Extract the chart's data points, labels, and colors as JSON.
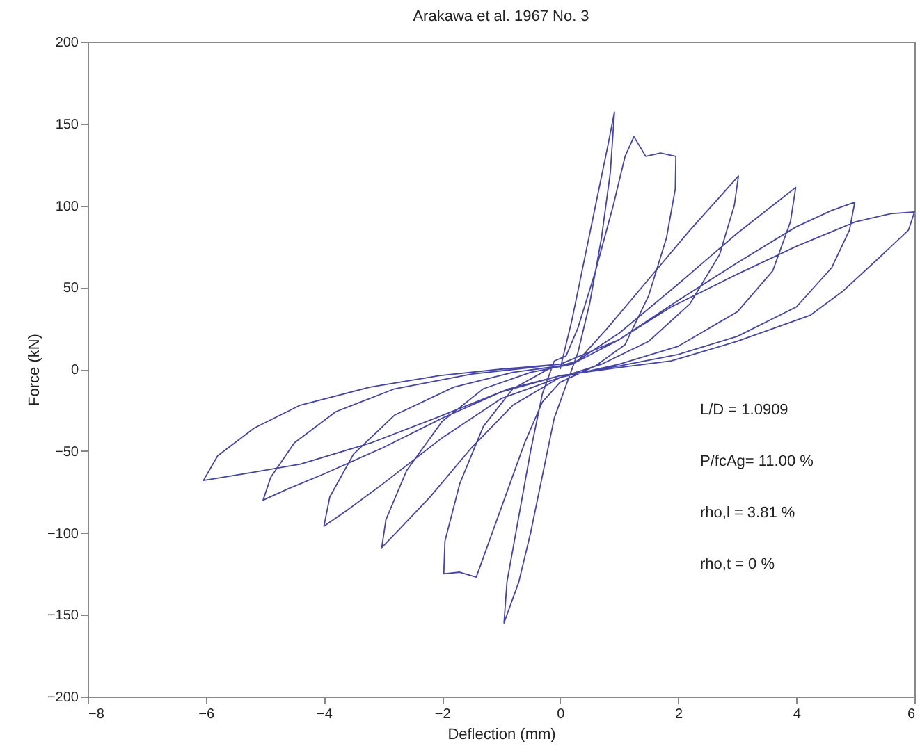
{
  "chart_data": {
    "type": "line",
    "title": "Arakawa et al. 1967 No. 3",
    "xlabel": "Deflection (mm)",
    "ylabel": "Force (kN)",
    "annotations": [
      "L/D  =  1.0909",
      "P/fcAg=  11.00  %",
      "rho,l  =  3.81  %",
      "rho,t  =  0  %"
    ],
    "xlim": [
      -8,
      6
    ],
    "xticks": [
      -8,
      -6,
      -4,
      -2,
      0,
      2,
      4,
      6
    ],
    "ylim": [
      -200,
      200
    ],
    "yticks": [
      -200,
      -150,
      -100,
      -50,
      0,
      50,
      100,
      150,
      200
    ],
    "grid": false,
    "series": [
      {
        "color": "#4444aa",
        "x": [
          0,
          0.2,
          0.4,
          0.6,
          0.8,
          0.92,
          0.85,
          0.7,
          0.5,
          0.3,
          0.1,
          -0.1,
          -0.3,
          -0.5,
          -0.7,
          -0.95,
          -0.9,
          -0.7,
          -0.5,
          -0.3,
          -0.1,
          0.1,
          0.3,
          0.6,
          0.9,
          1.1,
          1.25,
          1.45,
          1.7,
          1.96,
          1.95,
          1.8,
          1.5,
          1.1,
          0.6,
          0,
          -0.3,
          -0.6,
          -0.9,
          -1.2,
          -1.42,
          -1.7,
          -1.97,
          -1.95,
          -1.7,
          -1.3,
          -0.8,
          -0.2,
          0.3,
          0.8,
          1.5,
          2.2,
          2.7,
          3.02,
          2.95,
          2.7,
          2.2,
          1.5,
          0.7,
          0,
          -0.8,
          -1.5,
          -2.2,
          -2.7,
          -3.02,
          -2.95,
          -2.6,
          -2,
          -1.3,
          -0.5,
          0.2,
          1,
          2,
          3,
          3.6,
          3.99,
          3.9,
          3.6,
          3,
          2,
          1,
          0,
          -1,
          -2,
          -3,
          -3.6,
          -4,
          -3.9,
          -3.5,
          -2.8,
          -1.8,
          -0.8,
          0.2,
          1,
          2,
          3,
          4,
          4.6,
          4.99,
          4.9,
          4.6,
          4,
          3,
          2,
          1,
          0,
          -1,
          -2,
          -3,
          -4,
          -4.6,
          -5.03,
          -4.9,
          -4.5,
          -3.8,
          -2.8,
          -1.5,
          0,
          1,
          1.88,
          3,
          4,
          5,
          5.6,
          6,
          5.9,
          5.43,
          4.8,
          4.24,
          3,
          1.88,
          1,
          0,
          -0.87,
          -2.05,
          -3.2,
          -4.4,
          -5.2,
          -6.04,
          -5.8,
          -5.18,
          -4.4,
          -3.22,
          -2.05,
          -1,
          0
        ],
        "values": [
          0,
          30,
          65,
          100,
          135,
          157,
          120,
          80,
          40,
          10,
          -10,
          -30,
          -65,
          -100,
          -130,
          -155,
          -130,
          -90,
          -50,
          -15,
          5,
          8,
          25,
          60,
          100,
          130,
          142,
          130,
          132,
          130,
          110,
          80,
          45,
          15,
          2,
          -8,
          -20,
          -45,
          -75,
          -105,
          -127,
          -124,
          -125,
          -105,
          -70,
          -35,
          -12,
          0,
          5,
          25,
          55,
          85,
          105,
          118,
          100,
          70,
          40,
          17,
          3,
          -5,
          -22,
          -48,
          -78,
          -97,
          -109,
          -92,
          -62,
          -32,
          -12,
          -2,
          3,
          22,
          52,
          83,
          100,
          111,
          90,
          60,
          35,
          14,
          3,
          -5,
          -18,
          -42,
          -70,
          -86,
          -96,
          -78,
          -52,
          -28,
          -11,
          -2,
          3,
          18,
          42,
          65,
          87,
          97,
          102,
          85,
          62,
          38,
          20,
          9,
          2,
          -4,
          -14,
          -30,
          -48,
          -64,
          -73,
          -80,
          -66,
          -45,
          -26,
          -12,
          -3,
          3,
          18,
          38,
          58,
          75,
          90,
          95,
          96,
          85,
          69,
          48,
          33,
          17,
          5,
          1,
          -4,
          -12,
          -29,
          -45,
          -58,
          -63,
          -68,
          -53,
          -36,
          -22,
          -11,
          -4,
          0,
          3
        ]
      }
    ]
  }
}
